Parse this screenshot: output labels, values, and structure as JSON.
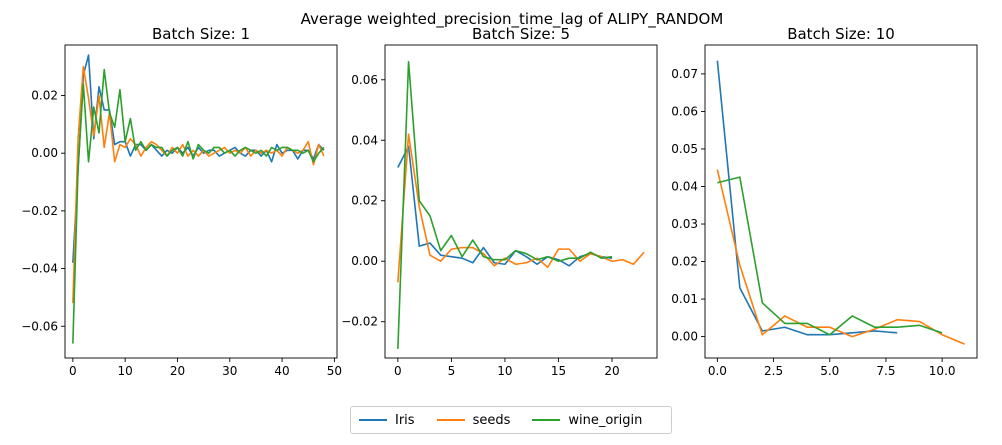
{
  "figure": {
    "suptitle": "Average weighted_precision_time_lag of ALIPY_RANDOM"
  },
  "legend": {
    "items": [
      {
        "label": "Iris",
        "color": "#1f77b4"
      },
      {
        "label": "seeds",
        "color": "#ff7f0e"
      },
      {
        "label": "wine_origin",
        "color": "#2ca02c"
      }
    ]
  },
  "chart_data": [
    {
      "type": "line",
      "title": "Batch Size: 1",
      "xlabel": "",
      "ylabel": "",
      "xlim": [
        -1.5,
        50.5
      ],
      "ylim": [
        -0.071,
        0.0375
      ],
      "xticks": [
        0,
        10,
        20,
        30,
        40,
        50
      ],
      "yticks": [
        -0.06,
        -0.04,
        -0.02,
        0.0,
        0.02
      ],
      "ytick_labels": [
        "−0.06",
        "−0.04",
        "−0.02",
        "0.00",
        "0.02"
      ],
      "grid": false,
      "series": [
        {
          "name": "Iris",
          "color": "#1f77b4",
          "x": [
            0,
            1,
            2,
            3,
            4,
            5,
            6,
            7,
            8,
            9,
            10,
            11,
            12,
            13,
            14,
            15,
            16,
            17,
            18,
            19,
            20,
            21,
            22,
            23,
            24,
            25,
            26,
            27,
            28,
            29,
            30,
            31,
            32,
            33,
            34,
            35,
            36,
            37,
            38,
            39,
            40,
            41,
            42,
            43,
            44,
            45,
            46,
            47,
            48
          ],
          "y": [
            -0.038,
            -0.006,
            0.027,
            0.034,
            0.005,
            0.023,
            0.015,
            0.015,
            0.003,
            0.004,
            0.004,
            -0.001,
            0.003,
            0.003,
            0.001,
            0.003,
            0.001,
            -0.001,
            0.001,
            0.0,
            0.002,
            0.0,
            0.002,
            -0.001,
            0.002,
            0.0,
            0.001,
            0.001,
            -0.001,
            0.0,
            0.001,
            0.002,
            0.0,
            -0.001,
            0.001,
            0.001,
            -0.001,
            0.001,
            -0.003,
            0.003,
            0.0,
            0.001,
            0.001,
            -0.002,
            0.001,
            0.001,
            -0.002,
            0.003,
            0.001
          ]
        },
        {
          "name": "seeds",
          "color": "#ff7f0e",
          "x": [
            0,
            1,
            2,
            3,
            4,
            5,
            6,
            7,
            8,
            9,
            10,
            11,
            12,
            13,
            14,
            15,
            16,
            17,
            18,
            19,
            20,
            21,
            22,
            23,
            24,
            25,
            26,
            27,
            28,
            29,
            30,
            31,
            32,
            33,
            34,
            35,
            36,
            37,
            38,
            39,
            40,
            41,
            42,
            43,
            44,
            45,
            46,
            47,
            48
          ],
          "y": [
            -0.052,
            0.005,
            0.03,
            0.019,
            0.006,
            0.02,
            0.002,
            0.014,
            -0.003,
            0.003,
            0.002,
            0.005,
            0.003,
            -0.001,
            0.002,
            0.004,
            0.003,
            0.001,
            -0.001,
            0.002,
            0.0,
            0.003,
            -0.001,
            0.001,
            -0.001,
            0.001,
            -0.001,
            0.0,
            0.001,
            0.002,
            0.0,
            0.001,
            0.0,
            0.002,
            -0.001,
            0.001,
            0.0,
            0.001,
            0.0,
            0.001,
            -0.001,
            0.002,
            0.001,
            0.0,
            0.001,
            0.004,
            -0.004,
            0.003,
            -0.001
          ]
        },
        {
          "name": "wine_origin",
          "color": "#2ca02c",
          "x": [
            0,
            1,
            2,
            3,
            4,
            5,
            6,
            7,
            8,
            9,
            10,
            11,
            12,
            13,
            14,
            15,
            16,
            17,
            18,
            19,
            20,
            21,
            22,
            23,
            24,
            25,
            26,
            27,
            28,
            29,
            30,
            31,
            32,
            33,
            34,
            35,
            36,
            37,
            38,
            39,
            40,
            41,
            42,
            43,
            44,
            45,
            46,
            47,
            48
          ],
          "y": [
            -0.066,
            -0.005,
            0.024,
            -0.003,
            0.016,
            0.007,
            0.029,
            0.014,
            0.009,
            0.022,
            0.004,
            0.012,
            0.001,
            0.004,
            0.001,
            0.003,
            0.002,
            0.002,
            -0.001,
            0.001,
            0.002,
            -0.001,
            0.004,
            -0.002,
            0.003,
            0.001,
            0.0,
            0.002,
            0.002,
            0.0,
            0.001,
            -0.001,
            0.001,
            0.002,
            0.001,
            0.0,
            0.001,
            -0.001,
            0.002,
            0.001,
            0.002,
            0.002,
            0.001,
            0.001,
            0.0,
            0.001,
            -0.003,
            0.0,
            0.002
          ]
        }
      ]
    },
    {
      "type": "line",
      "title": "Batch Size: 5",
      "xlabel": "",
      "ylabel": "",
      "xlim": [
        -1.2,
        24.2
      ],
      "ylim": [
        -0.032,
        0.0715
      ],
      "xticks": [
        0,
        5,
        10,
        15,
        20
      ],
      "yticks": [
        -0.02,
        0.0,
        0.02,
        0.04,
        0.06
      ],
      "ytick_labels": [
        "−0.02",
        "0.00",
        "0.02",
        "0.04",
        "0.06"
      ],
      "grid": false,
      "series": [
        {
          "name": "Iris",
          "color": "#1f77b4",
          "x": [
            0,
            1,
            2,
            3,
            4,
            5,
            6,
            7,
            8,
            9,
            10,
            11,
            12,
            13,
            14,
            15,
            16,
            17,
            18,
            19,
            20
          ],
          "y": [
            0.031,
            0.038,
            0.005,
            0.006,
            0.002,
            0.0015,
            0.001,
            -0.0005,
            0.0045,
            -0.0005,
            -0.001,
            0.0035,
            0.0015,
            -0.001,
            0.0015,
            0.0005,
            -0.0015,
            0.0015,
            0.0025,
            0.0015,
            0.001
          ]
        },
        {
          "name": "seeds",
          "color": "#ff7f0e",
          "x": [
            0,
            1,
            2,
            3,
            4,
            5,
            6,
            7,
            8,
            9,
            10,
            11,
            12,
            13,
            14,
            15,
            16,
            17,
            18,
            19,
            20,
            21,
            22,
            23
          ],
          "y": [
            -0.007,
            0.042,
            0.018,
            0.002,
            0.0,
            0.004,
            0.0045,
            0.0045,
            0.0025,
            -0.0015,
            0.001,
            -0.001,
            -0.0005,
            0.001,
            -0.002,
            0.004,
            0.004,
            0.0,
            0.0025,
            0.0015,
            0.0,
            0.0005,
            -0.001,
            0.003
          ]
        },
        {
          "name": "wine_origin",
          "color": "#2ca02c",
          "x": [
            0,
            1,
            2,
            3,
            4,
            5,
            6,
            7,
            8,
            9,
            10,
            11,
            12,
            13,
            14,
            15,
            16,
            17,
            18,
            19,
            20
          ],
          "y": [
            -0.029,
            0.066,
            0.02,
            0.015,
            0.0035,
            0.0085,
            0.0015,
            0.007,
            0.0015,
            0.0005,
            0.0005,
            0.0035,
            0.0025,
            0.0005,
            0.0015,
            0.0,
            0.001,
            0.001,
            0.003,
            0.001,
            0.0015
          ]
        }
      ]
    },
    {
      "type": "line",
      "title": "Batch Size: 10",
      "xlabel": "",
      "ylabel": "",
      "xlim": [
        -0.55,
        11.55
      ],
      "ylim": [
        -0.0057,
        0.0777
      ],
      "xticks": [
        0.0,
        2.5,
        5.0,
        7.5,
        10.0
      ],
      "xtick_labels": [
        "0.0",
        "2.5",
        "5.0",
        "7.5",
        "10.0"
      ],
      "yticks": [
        0.0,
        0.01,
        0.02,
        0.03,
        0.04,
        0.05,
        0.06,
        0.07
      ],
      "ytick_labels": [
        "0.00",
        "0.01",
        "0.02",
        "0.03",
        "0.04",
        "0.05",
        "0.06",
        "0.07"
      ],
      "grid": false,
      "series": [
        {
          "name": "Iris",
          "color": "#1f77b4",
          "x": [
            0,
            1,
            2,
            3,
            4,
            5,
            6,
            7,
            8
          ],
          "y": [
            0.0735,
            0.013,
            0.0015,
            0.0025,
            0.0005,
            0.0005,
            0.001,
            0.0015,
            0.001
          ]
        },
        {
          "name": "seeds",
          "color": "#ff7f0e",
          "x": [
            0,
            1,
            2,
            3,
            4,
            5,
            6,
            7,
            8,
            9,
            10,
            11
          ],
          "y": [
            0.0445,
            0.019,
            0.0005,
            0.0055,
            0.0025,
            0.0025,
            0.0,
            0.002,
            0.0045,
            0.004,
            0.0005,
            -0.002
          ]
        },
        {
          "name": "wine_origin",
          "color": "#2ca02c",
          "x": [
            0,
            1,
            2,
            3,
            4,
            5,
            6,
            7,
            8,
            9,
            10
          ],
          "y": [
            0.041,
            0.0425,
            0.009,
            0.0035,
            0.0035,
            0.0005,
            0.0055,
            0.0025,
            0.0025,
            0.003,
            0.001
          ]
        }
      ]
    }
  ]
}
